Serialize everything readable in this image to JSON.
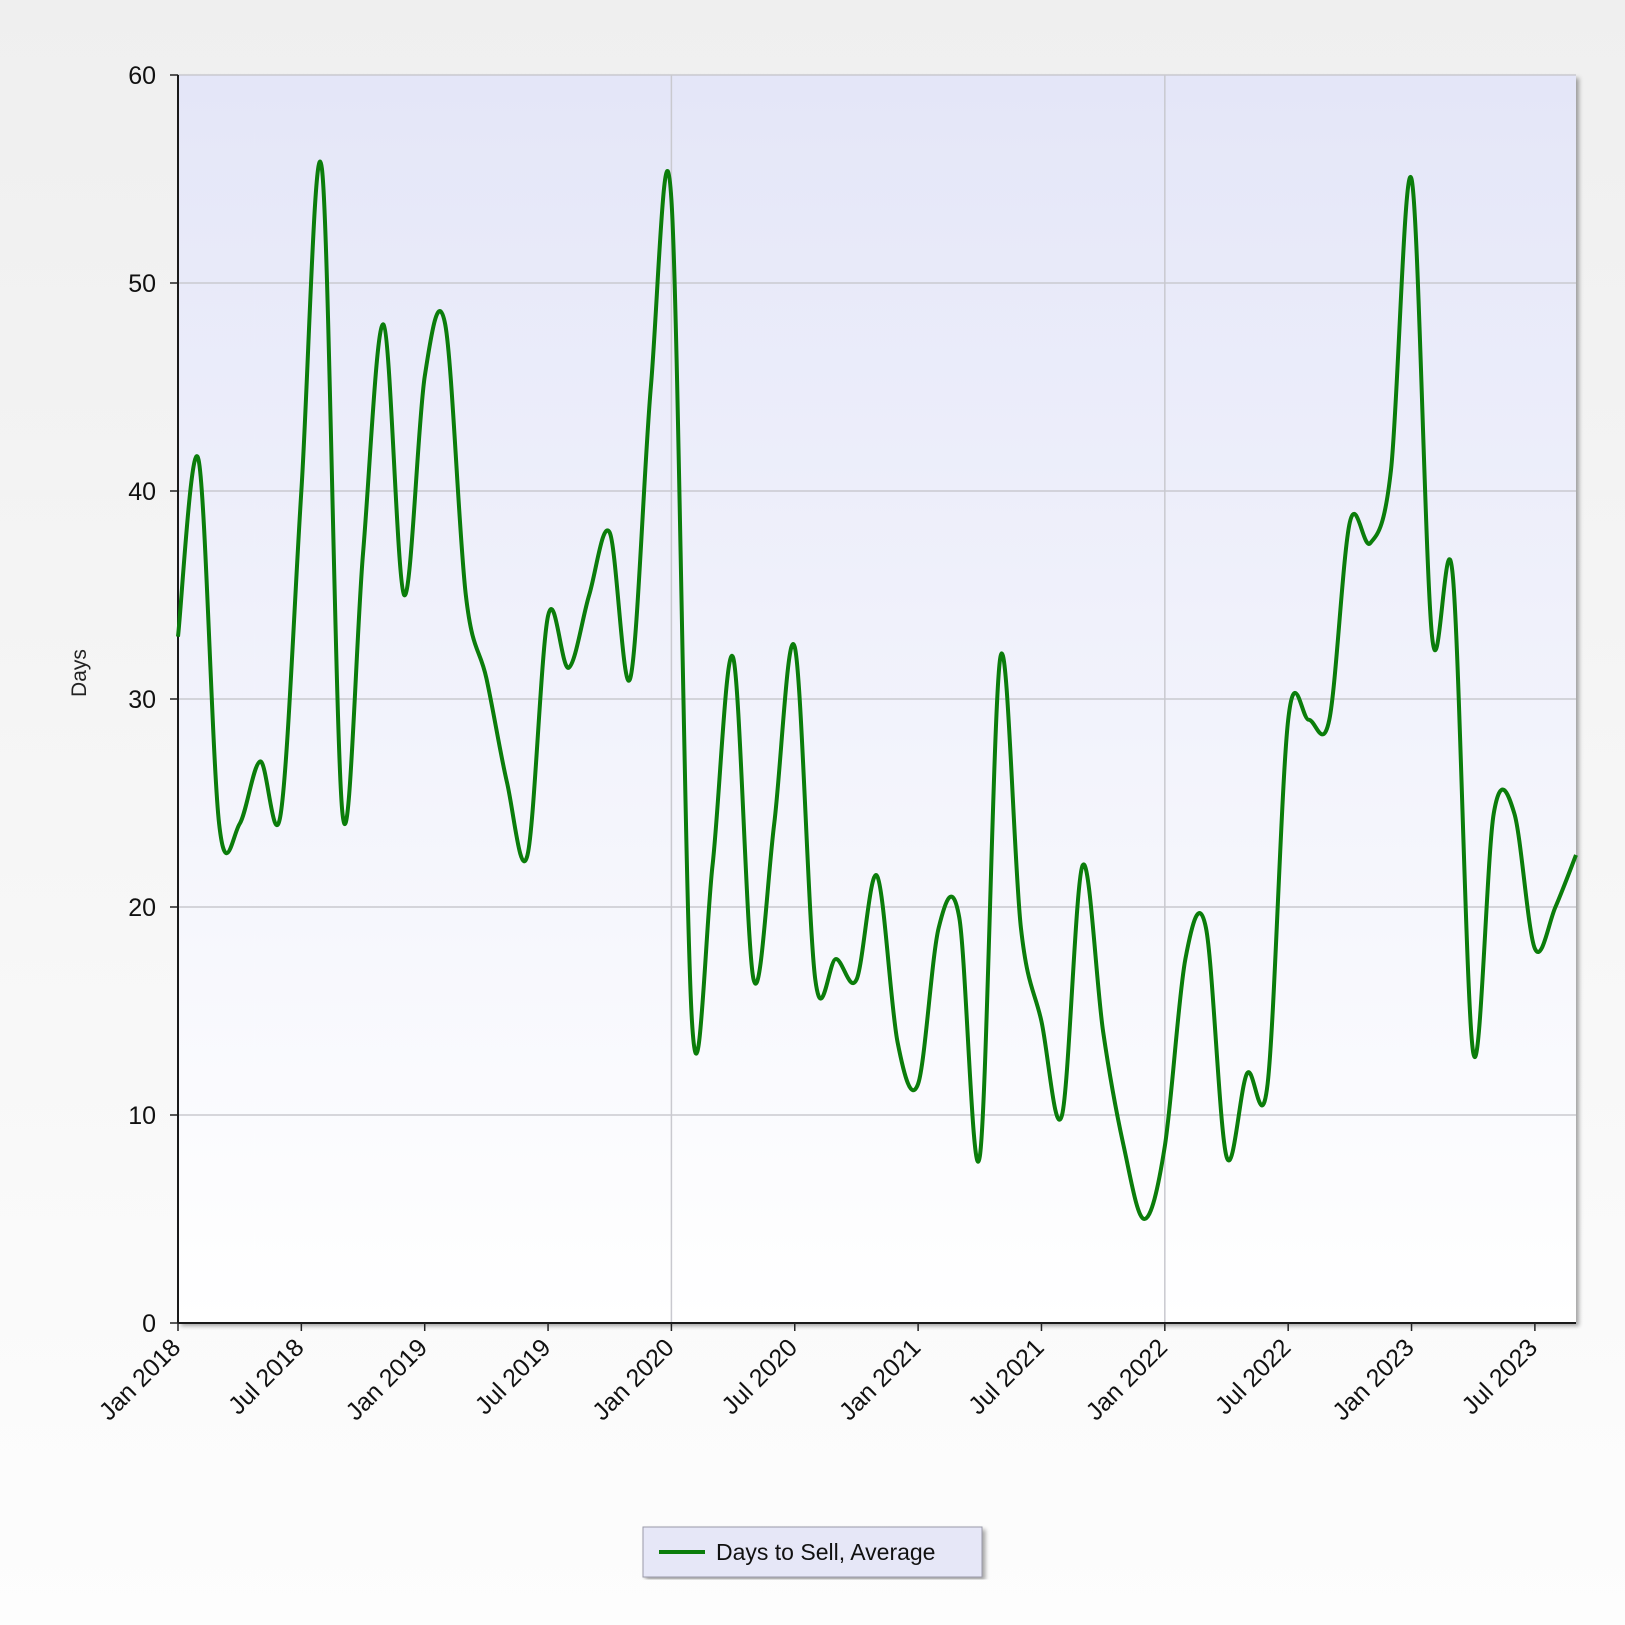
{
  "chart_data": {
    "type": "line",
    "ylabel": "Days",
    "xlabel": "",
    "title": "",
    "ylim": [
      0,
      60
    ],
    "yticks": [
      0,
      10,
      20,
      30,
      40,
      50,
      60
    ],
    "xlim": [
      "2018-01",
      "2023-09"
    ],
    "xticks": [
      {
        "label": "Jan 2018",
        "x": "2018-01"
      },
      {
        "label": "Jul 2018",
        "x": "2018-07"
      },
      {
        "label": "Jan 2019",
        "x": "2019-01"
      },
      {
        "label": "Jul 2019",
        "x": "2019-07"
      },
      {
        "label": "Jan 2020",
        "x": "2020-01"
      },
      {
        "label": "Jul 2020",
        "x": "2020-07"
      },
      {
        "label": "Jan 2021",
        "x": "2021-01"
      },
      {
        "label": "Jul 2021",
        "x": "2021-07"
      },
      {
        "label": "Jan 2022",
        "x": "2022-01"
      },
      {
        "label": "Jul 2022",
        "x": "2022-07"
      },
      {
        "label": "Jan 2023",
        "x": "2023-01"
      },
      {
        "label": "Jul 2023",
        "x": "2023-07"
      }
    ],
    "vertical_grid_at": [
      "2020-01",
      "2022-01"
    ],
    "grid": true,
    "legend_position": "bottom-center",
    "series": [
      {
        "name": "Days to Sell, Average",
        "color": "#0b7d0b",
        "x": [
          "2018-01",
          "2018-02",
          "2018-03",
          "2018-04",
          "2018-05",
          "2018-06",
          "2018-07",
          "2018-08",
          "2018-09",
          "2018-10",
          "2018-11",
          "2018-12",
          "2019-01",
          "2019-02",
          "2019-03",
          "2019-04",
          "2019-05",
          "2019-06",
          "2019-07",
          "2019-08",
          "2019-09",
          "2019-10",
          "2019-11",
          "2019-12",
          "2020-01",
          "2020-02",
          "2020-03",
          "2020-04",
          "2020-05",
          "2020-06",
          "2020-07",
          "2020-08",
          "2020-09",
          "2020-10",
          "2020-11",
          "2020-12",
          "2021-01",
          "2021-02",
          "2021-03",
          "2021-04",
          "2021-05",
          "2021-06",
          "2021-07",
          "2021-08",
          "2021-09",
          "2021-10",
          "2021-11",
          "2021-12",
          "2022-01",
          "2022-02",
          "2022-03",
          "2022-04",
          "2022-05",
          "2022-06",
          "2022-07",
          "2022-08",
          "2022-09",
          "2022-10",
          "2022-11",
          "2022-12",
          "2023-01",
          "2023-02",
          "2023-03",
          "2023-04",
          "2023-05",
          "2023-06",
          "2023-07",
          "2023-08",
          "2023-09"
        ],
        "y": [
          33,
          41.5,
          24,
          24,
          27,
          24.5,
          40,
          55.5,
          24.5,
          37,
          48,
          35,
          45.5,
          48,
          35,
          31,
          26,
          22.5,
          34,
          31.5,
          35,
          38,
          31,
          45,
          54,
          14.5,
          22,
          32,
          16.5,
          24,
          32.5,
          16.5,
          17.5,
          16.5,
          21.5,
          13.5,
          11.5,
          19,
          19.5,
          8,
          32,
          19,
          14.5,
          10,
          22,
          14,
          8.5,
          5,
          8.5,
          17.5,
          19,
          8,
          12,
          11.5,
          29,
          29,
          29,
          38.5,
          37.5,
          41,
          55,
          33,
          36,
          13,
          24.5,
          24.5,
          18,
          20,
          22.5
        ]
      }
    ]
  }
}
